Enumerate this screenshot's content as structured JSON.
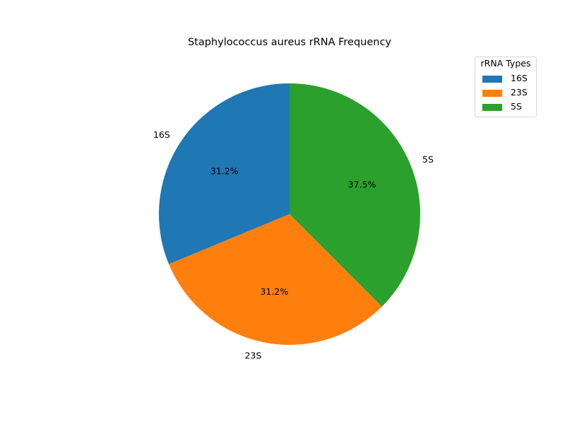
{
  "chart_data": {
    "type": "pie",
    "title": "Staphylococcus aureus rRNA Frequency",
    "categories": [
      "16S",
      "23S",
      "5S"
    ],
    "values": [
      31.25,
      31.25,
      37.5
    ],
    "percent_labels": [
      "31.2%",
      "31.2%",
      "37.5%"
    ],
    "colors": [
      "#1f77b4",
      "#ff7f0e",
      "#2ca02c"
    ],
    "start_angle_deg": 90,
    "direction": "counterclockwise",
    "legend": {
      "title": "rRNA Types",
      "placement": "upper-right",
      "entries": [
        "16S",
        "23S",
        "5S"
      ]
    }
  }
}
